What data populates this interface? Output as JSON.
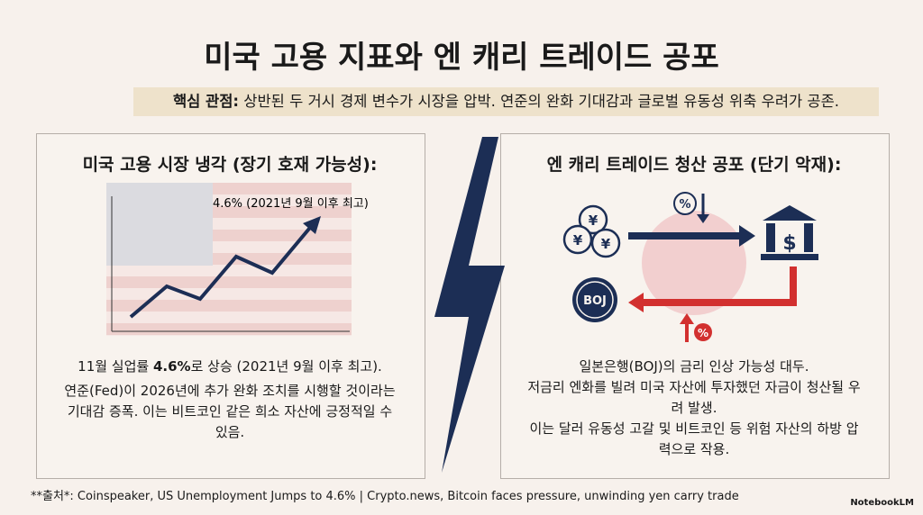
{
  "title": "미국 고용 지표와 엔 캐리 트레이드 공포",
  "key_point": {
    "label": "핵심 관점:",
    "text": "상반된 두 거시 경제 변수가 시장을 압박. 연준의 완화 기대감과 글로벌 유동성 위축 우려가 공존."
  },
  "left_panel": {
    "heading": "미국 고용 시장 냉각 (장기 호재 가능성):",
    "chart_annotation": "4.6% (2021년 9월 이후 최고)",
    "paragraph_1": {
      "before": "11월 실업률 ",
      "bold": "4.6%",
      "after": "로 상승 (2021년 9월 이후 최고)."
    },
    "paragraph_2": "연준(Fed)이 2026년에 추가 완화 조치를 시행할 것이라는 기대감 증폭. 이는 비트코인 같은 희소 자산에 긍정적일 수 있음."
  },
  "right_panel": {
    "heading": "엔 캐리 트레이드 청산 공포 (단기 악재):",
    "icons": {
      "yen": "¥",
      "percent": "%",
      "dollar": "$",
      "boj": "BOJ"
    },
    "paragraphs": [
      "일본은행(BOJ)의 금리 인상 가능성 대두.",
      "저금리 엔화를 빌려 미국 자산에 투자했던 자금이 청산될 우려 발생.",
      "이는 달러 유동성 고갈 및 비트코인 등 위험 자산의 하방 압력으로 작용."
    ]
  },
  "source": "**출처*: Coinspeaker, US Unemployment Jumps to 4.6% | Crypto.news, Bitcoin faces pressure, unwinding yen carry trade",
  "brand": "NotebookLM"
}
